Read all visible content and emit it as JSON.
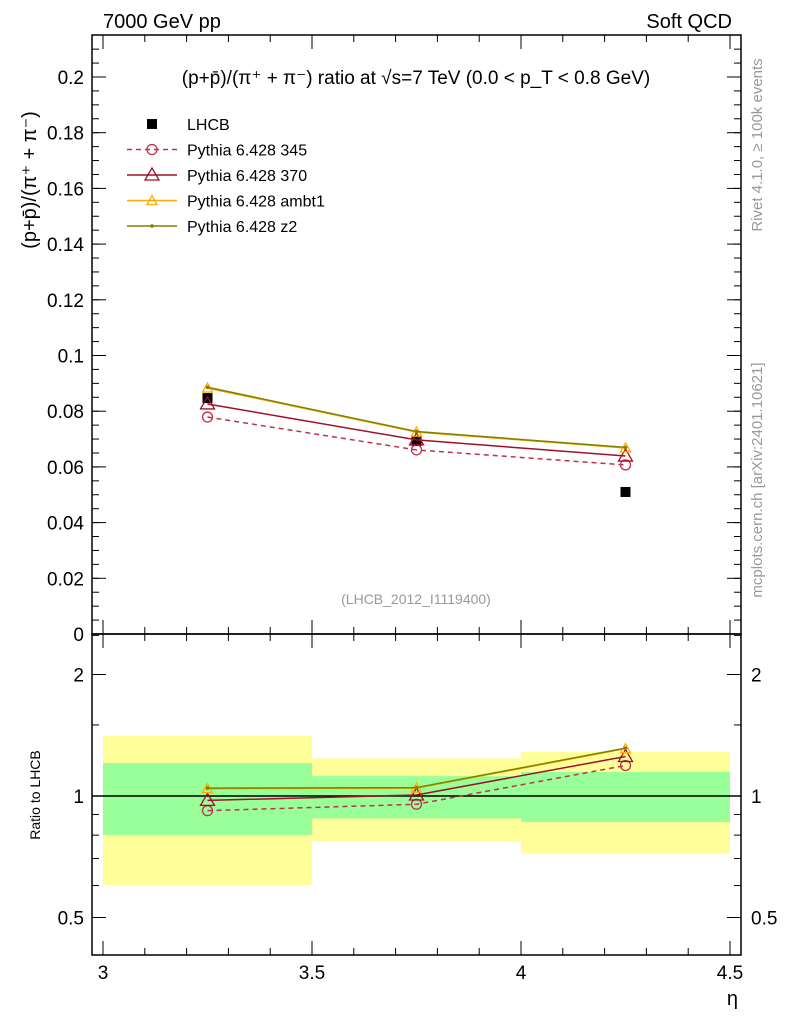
{
  "header": {
    "left": "7000 GeV pp",
    "right": "Soft QCD"
  },
  "side_text": {
    "rivet": "Rivet 4.1.0, ≥ 100k events",
    "url": "mcplots.cern.ch [arXiv:2401.10621]"
  },
  "chart_data": {
    "type": "line",
    "title": "(p+p̄)/(π⁺ + π⁻) ratio at √s=7 TeV (0.0 < p_T < 0.8 GeV)",
    "ylabel": "(p+p̄)/(π⁺ + π⁻)",
    "xlabel": "η",
    "ratio_ylabel": "Ratio to LHCB",
    "analysis_tag": "(LHCB_2012_I1119400)",
    "x": [
      3.25,
      3.75,
      4.25
    ],
    "bins": [
      [
        3.0,
        3.5
      ],
      [
        3.5,
        4.0
      ],
      [
        4.0,
        4.5
      ]
    ],
    "xlim": [
      3.0,
      4.5
    ],
    "ylim": [
      0,
      0.215
    ],
    "xticks": [
      "3",
      "3.5",
      "4",
      "4.5"
    ],
    "yticks": [
      "0",
      "0.02",
      "0.04",
      "0.06",
      "0.08",
      "0.1",
      "0.12",
      "0.14",
      "0.16",
      "0.18",
      "0.2"
    ],
    "ratio_ylim": [
      0.404,
      2.52
    ],
    "ratio_yticks": [
      "0.5",
      "1",
      "2"
    ],
    "series": [
      {
        "name": "LHCB",
        "values": [
          0.0847,
          0.0693,
          0.051
        ],
        "color": "#000000",
        "marker": "square",
        "dash": false
      },
      {
        "name": "Pythia 6.428 345",
        "values": [
          0.0779,
          0.0661,
          0.0607
        ],
        "color": "#c03050",
        "marker": "circle",
        "dash": true
      },
      {
        "name": "Pythia 6.428 370",
        "values": [
          0.0826,
          0.0697,
          0.0639
        ],
        "color": "#a0102a",
        "marker": "triangle",
        "dash": false
      },
      {
        "name": "Pythia 6.428 ambt1",
        "values": [
          0.0883,
          0.0725,
          0.0668
        ],
        "color": "#ffaa00",
        "marker": "triangle-small",
        "dash": false
      },
      {
        "name": "Pythia 6.428 z2",
        "values": [
          0.0886,
          0.0727,
          0.067
        ],
        "color": "#808000",
        "marker": "star",
        "dash": false
      }
    ],
    "ratio_bands": {
      "stat_syst_outer": [
        [
          0.602,
          1.408
        ],
        [
          0.77,
          1.24
        ],
        [
          0.72,
          1.285
        ]
      ],
      "inner": [
        [
          0.8,
          1.207
        ],
        [
          0.88,
          1.12
        ],
        [
          0.862,
          1.147
        ]
      ],
      "outer_color": "#ffff99",
      "inner_color": "#99ff99"
    }
  }
}
